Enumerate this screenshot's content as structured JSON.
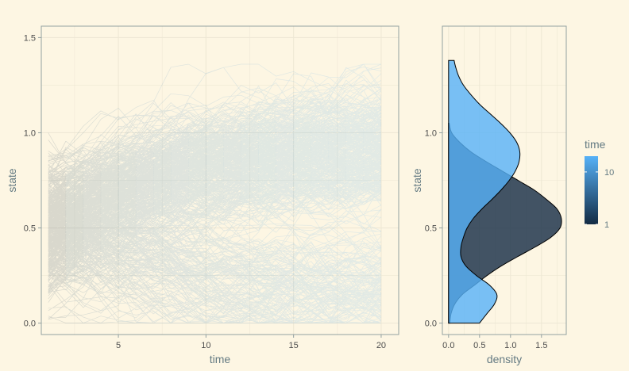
{
  "chart_data": [
    {
      "type": "line",
      "xlabel": "time",
      "ylabel": "state",
      "xlim": [
        0.6,
        21
      ],
      "ylim": [
        -0.06,
        1.56
      ],
      "x_ticks": [
        5,
        10,
        15,
        20
      ],
      "y_ticks": [
        0.0,
        0.5,
        1.0,
        1.5
      ],
      "x_tick_labels": [
        "5",
        "10",
        "15",
        "20"
      ],
      "y_tick_labels": [
        "0.0",
        "0.5",
        "1.0",
        "1.5"
      ],
      "x_range": [
        1,
        20
      ],
      "n_trajectories": 500,
      "start_state_mean": 0.5,
      "upper_mode_center": 0.95,
      "lower_mode_center": 0.15,
      "grid": true,
      "color_by": "time"
    },
    {
      "type": "area",
      "xlabel": "density",
      "ylabel": "state",
      "xlim": [
        -0.1,
        1.9
      ],
      "ylim": [
        -0.06,
        1.56
      ],
      "x_ticks": [
        0.0,
        0.5,
        1.0,
        1.5
      ],
      "y_ticks": [
        0.0,
        0.5,
        1.0
      ],
      "x_tick_labels": [
        "0.0",
        "0.5",
        "1.0",
        "1.5"
      ],
      "y_tick_labels": [
        "0.0",
        "0.5",
        "1.0"
      ],
      "grid": true,
      "series": [
        {
          "time": 1,
          "color": "#132b43",
          "state": [
            0.0,
            0.05,
            0.1,
            0.15,
            0.2,
            0.25,
            0.3,
            0.35,
            0.4,
            0.45,
            0.5,
            0.55,
            0.6,
            0.65,
            0.7,
            0.75,
            0.8,
            0.85,
            0.9,
            0.95,
            1.0,
            1.05
          ],
          "density": [
            0.02,
            0.04,
            0.1,
            0.22,
            0.42,
            0.62,
            0.85,
            1.12,
            1.4,
            1.65,
            1.8,
            1.82,
            1.75,
            1.58,
            1.38,
            1.12,
            0.86,
            0.6,
            0.36,
            0.18,
            0.05,
            0.01
          ]
        },
        {
          "time": 20,
          "color": "#56b1f7",
          "state": [
            0.0,
            0.05,
            0.1,
            0.15,
            0.2,
            0.25,
            0.3,
            0.35,
            0.4,
            0.45,
            0.5,
            0.55,
            0.6,
            0.65,
            0.7,
            0.75,
            0.8,
            0.85,
            0.9,
            0.95,
            1.0,
            1.05,
            1.1,
            1.15,
            1.2,
            1.25,
            1.3,
            1.35,
            1.38
          ],
          "density": [
            0.5,
            0.62,
            0.74,
            0.78,
            0.66,
            0.45,
            0.28,
            0.2,
            0.2,
            0.24,
            0.3,
            0.4,
            0.54,
            0.7,
            0.85,
            0.98,
            1.08,
            1.14,
            1.15,
            1.1,
            0.99,
            0.84,
            0.67,
            0.5,
            0.36,
            0.24,
            0.16,
            0.11,
            0.09
          ]
        }
      ]
    }
  ],
  "legend": {
    "title": "time",
    "scale": "log",
    "labels": [
      "1",
      "10"
    ],
    "values": [
      1,
      10
    ],
    "range": [
      1,
      20
    ],
    "low_color": "#132b43",
    "high_color": "#56b1f7"
  },
  "colors": {
    "background": "#fdf6e3",
    "grid": "#eee8d5",
    "axis": "#93a1a1"
  }
}
